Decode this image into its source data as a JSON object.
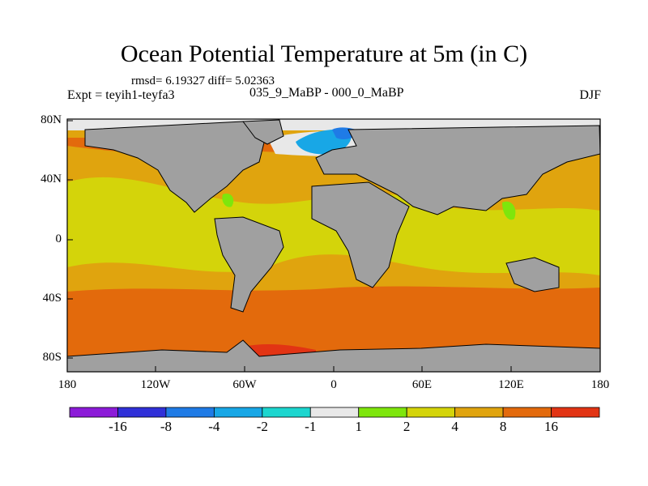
{
  "title": "Ocean Potential Temperature at 5m (in C)",
  "stats": "rmsd= 6.19327 diff= 5.02363",
  "experiment": "Expt = teyih1-teyfa3",
  "comparison": "035_9_MaBP - 000_0_MaBP",
  "season": "DJF",
  "colors": {
    "land": "#a0a0a0",
    "background": "#ffffff"
  },
  "axes": {
    "y_ticks": [
      "80N",
      "40N",
      "0",
      "40S",
      "80S"
    ],
    "x_ticks": [
      "180",
      "120W",
      "60W",
      "0",
      "60E",
      "120E",
      "180"
    ]
  },
  "colorbar": {
    "colors": [
      "#8c1bd8",
      "#3030d8",
      "#1f7be6",
      "#18a7e6",
      "#1cd6cf",
      "#e8e8e8",
      "#7ee60c",
      "#d4d40a",
      "#e0a40e",
      "#e36a0c",
      "#e23414"
    ],
    "labels": [
      "-16",
      "-8",
      "-4",
      "-2",
      "-1",
      "1",
      "2",
      "4",
      "8",
      "16"
    ]
  }
}
